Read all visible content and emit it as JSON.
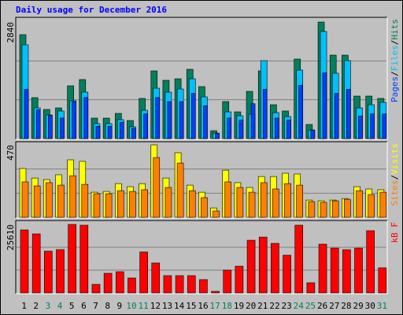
{
  "chart_data": [
    {
      "type": "bar",
      "title": "Daily usage for December 2016",
      "ylim": [
        0,
        2840
      ],
      "yticks": [
        2840
      ],
      "grid": true,
      "legend_separator": "/",
      "series": [
        {
          "name": "Hits",
          "color": "#00805c",
          "values": [
            2533,
            998,
            710,
            748,
            1286,
            1439,
            499,
            499,
            614,
            441,
            979,
            1650,
            1420,
            1458,
            1689,
            1267,
            192,
            902,
            652,
            1151,
            1650,
            825,
            672,
            1938,
            345,
            2840,
            2034,
            2034,
            1036,
            1036,
            979
          ]
        },
        {
          "name": "Files",
          "color": "#00c0ff",
          "values": [
            2284,
            748,
            576,
            672,
            921,
            1132,
            365,
            365,
            461,
            288,
            691,
            1228,
            1132,
            1209,
            1458,
            1017,
            134,
            652,
            557,
            595,
            1900,
            633,
            537,
            1670,
            211,
            2610,
            1593,
            1900,
            748,
            825,
            883
          ]
        },
        {
          "name": "Pages",
          "color": "#0040ff",
          "values": [
            1200,
            700,
            560,
            500,
            900,
            1000,
            300,
            300,
            400,
            250,
            600,
            1000,
            900,
            900,
            1100,
            800,
            120,
            500,
            450,
            850,
            1200,
            500,
            450,
            1300,
            200,
            1600,
            1100,
            1200,
            550,
            600,
            600
          ]
        }
      ]
    },
    {
      "type": "bar",
      "ylim": [
        0,
        470
      ],
      "yticks": [
        470
      ],
      "grid": true,
      "legend_separator": "/",
      "series": [
        {
          "name": "Visits",
          "color": "#ffff00",
          "values": [
            317,
            255,
            245,
            276,
            373,
            363,
            163,
            168,
            219,
            199,
            219,
            470,
            255,
            419,
            209,
            163,
            61,
            306,
            225,
            194,
            265,
            265,
            286,
            281,
            112,
            107,
            112,
            122,
            199,
            184,
            179
          ]
        },
        {
          "name": "Sites",
          "color": "#ff8000",
          "values": [
            230,
            204,
            225,
            209,
            270,
            214,
            153,
            153,
            173,
            168,
            179,
            388,
            194,
            352,
            173,
            128,
            41,
            230,
            194,
            163,
            225,
            184,
            219,
            209,
            102,
            97,
            107,
            117,
            173,
            148,
            163
          ]
        }
      ]
    },
    {
      "type": "bar",
      "ylim": [
        0,
        25610
      ],
      "yticks": [
        25610
      ],
      "grid": true,
      "categories": [
        "1",
        "2",
        "3",
        "4",
        "5",
        "6",
        "7",
        "8",
        "9",
        "10",
        "11",
        "12",
        "13",
        "14",
        "15",
        "16",
        "17",
        "18",
        "19",
        "20",
        "21",
        "22",
        "23",
        "24",
        "25",
        "26",
        "27",
        "28",
        "29",
        "30",
        "31"
      ],
      "label_colors": [
        "#000000",
        "#000000",
        "#00805c",
        "#00805c",
        "#000000",
        "#000000",
        "#000000",
        "#000000",
        "#000000",
        "#00805c",
        "#00805c",
        "#000000",
        "#000000",
        "#000000",
        "#000000",
        "#000000",
        "#00805c",
        "#00805c",
        "#000000",
        "#000000",
        "#000000",
        "#000000",
        "#000000",
        "#00805c",
        "#00805c",
        "#000000",
        "#000000",
        "#000000",
        "#000000",
        "#000000",
        "#00805c"
      ],
      "series": [
        {
          "name": "kB F",
          "color": "#ff0000",
          "values": [
            23550,
            22080,
            15610,
            16200,
            25610,
            25320,
            3230,
            7350,
            7940,
            5590,
            15320,
            11200,
            6470,
            6470,
            6470,
            5000,
            590,
            8530,
            10000,
            19700,
            20880,
            18530,
            14120,
            25320,
            3820,
            18240,
            16760,
            16170,
            16760,
            23260,
            9410
          ]
        }
      ]
    }
  ]
}
